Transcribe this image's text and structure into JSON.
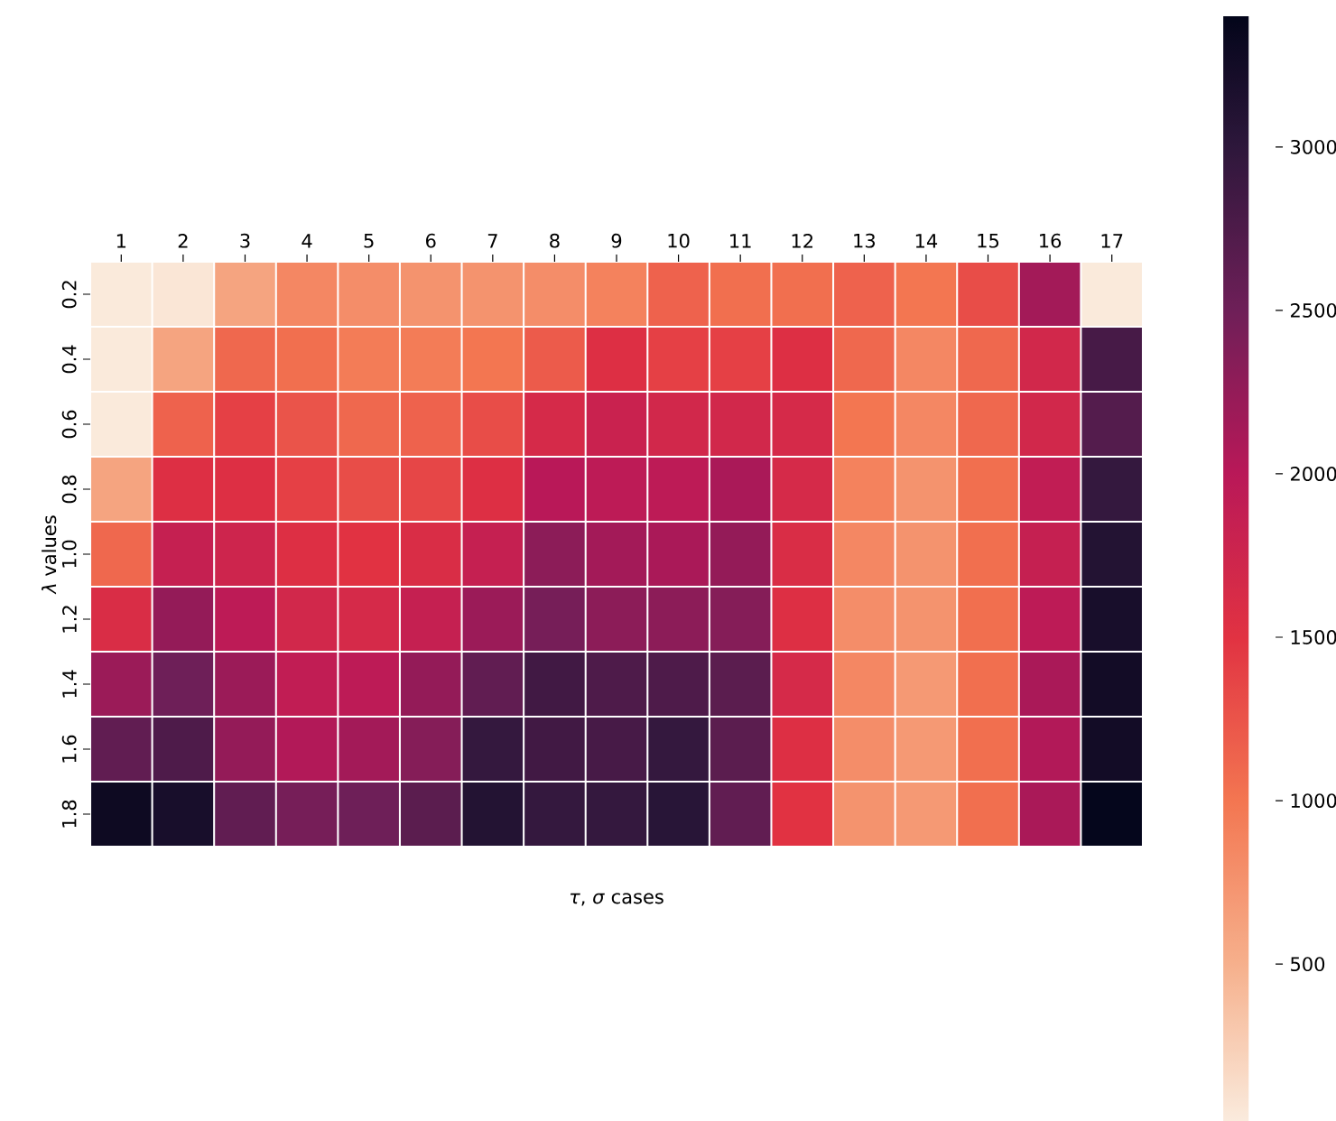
{
  "chart_data": {
    "type": "heatmap",
    "xlabel": "*τ*, *σ* cases",
    "ylabel": "*λ* values",
    "categories": [
      "1",
      "2",
      "3",
      "4",
      "5",
      "6",
      "7",
      "8",
      "9",
      "10",
      "11",
      "12",
      "13",
      "14",
      "15",
      "16",
      "17"
    ],
    "y_categories": [
      "0.2",
      "0.4",
      "0.6",
      "0.8",
      "1.0",
      "1.2",
      "1.4",
      "1.6",
      "1.8"
    ],
    "cells": [
      [
        30,
        60,
        600,
        850,
        800,
        750,
        750,
        800,
        900,
        1150,
        1050,
        1050,
        1150,
        1000,
        1300,
        2150,
        30
      ],
      [
        30,
        600,
        1100,
        1050,
        950,
        950,
        1000,
        1200,
        1550,
        1400,
        1400,
        1550,
        1100,
        850,
        1100,
        1700,
        2800
      ],
      [
        30,
        1150,
        1400,
        1250,
        1100,
        1150,
        1300,
        1650,
        1800,
        1700,
        1700,
        1650,
        1000,
        850,
        1100,
        1700,
        2700
      ],
      [
        600,
        1550,
        1550,
        1400,
        1300,
        1350,
        1550,
        2000,
        1950,
        1950,
        2100,
        1650,
        900,
        750,
        1050,
        1900,
        2950
      ],
      [
        1100,
        1850,
        1750,
        1550,
        1500,
        1600,
        1850,
        2300,
        2150,
        2100,
        2250,
        1600,
        850,
        750,
        1050,
        1850,
        3100
      ],
      [
        1600,
        2250,
        1950,
        1700,
        1650,
        1850,
        2200,
        2450,
        2300,
        2300,
        2350,
        1550,
        800,
        750,
        1050,
        1950,
        3200
      ],
      [
        2200,
        2500,
        2200,
        1900,
        1950,
        2250,
        2600,
        2850,
        2750,
        2750,
        2650,
        1650,
        850,
        700,
        1050,
        2100,
        3250
      ],
      [
        2600,
        2750,
        2250,
        2050,
        2150,
        2350,
        2950,
        2850,
        2800,
        2950,
        2650,
        1550,
        800,
        700,
        1050,
        2050,
        3250
      ],
      [
        3300,
        3200,
        2600,
        2450,
        2500,
        2650,
        3100,
        2950,
        2950,
        3050,
        2600,
        1500,
        750,
        700,
        1050,
        2100,
        3380
      ]
    ],
    "clim": [
      20,
      3400
    ],
    "cticks": [
      500,
      1000,
      1500,
      2000,
      2500,
      3000
    ]
  }
}
